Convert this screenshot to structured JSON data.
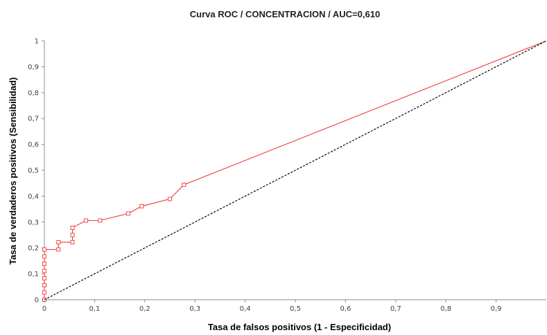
{
  "chart_data": {
    "type": "line",
    "title": "Curva ROC / CONCENTRACION / AUC=0,610",
    "xlabel": "Tasa de falsos positivos (1 - Especificidad)",
    "ylabel": "Tasa de verdaderos positivos (Sensibilidad)",
    "xlim": [
      0,
      1
    ],
    "ylim": [
      0,
      1
    ],
    "x_ticks": [
      0,
      0.1,
      0.2,
      0.3,
      0.4,
      0.5,
      0.6,
      0.7,
      0.8,
      0.9
    ],
    "x_tick_labels": [
      "0",
      "0,1",
      "0,2",
      "0,3",
      "0,4",
      "0,5",
      "0,6",
      "0,7",
      "0,8",
      "0,9"
    ],
    "y_ticks": [
      0,
      0.1,
      0.2,
      0.3,
      0.4,
      0.5,
      0.6,
      0.7,
      0.8,
      0.9,
      1
    ],
    "y_tick_labels": [
      "0",
      "0,1",
      "0,2",
      "0,3",
      "0,4",
      "0,5",
      "0,6",
      "0,7",
      "0,8",
      "0,9",
      "1"
    ],
    "grid": false,
    "series": [
      {
        "color": "#f04848",
        "marker": "square",
        "x": [
          0,
          0,
          0,
          0,
          0,
          0,
          0,
          0,
          0,
          0.028,
          0.028,
          0.056,
          0.056,
          0.056,
          0.083,
          0.111,
          0.167,
          0.194,
          0.25,
          0.278,
          1
        ],
        "y": [
          0,
          0.028,
          0.056,
          0.083,
          0.111,
          0.139,
          0.167,
          0.194,
          0.194,
          0.194,
          0.222,
          0.222,
          0.25,
          0.278,
          0.306,
          0.306,
          0.333,
          0.361,
          0.389,
          0.444,
          1
        ],
        "markers": [
          true,
          true,
          true,
          true,
          true,
          true,
          true,
          true,
          true,
          true,
          true,
          true,
          true,
          true,
          true,
          true,
          true,
          true,
          true,
          true,
          false
        ]
      },
      {
        "color": "#000000",
        "dashed": true,
        "x": [
          0,
          1
        ],
        "y": [
          0,
          1
        ]
      }
    ]
  }
}
